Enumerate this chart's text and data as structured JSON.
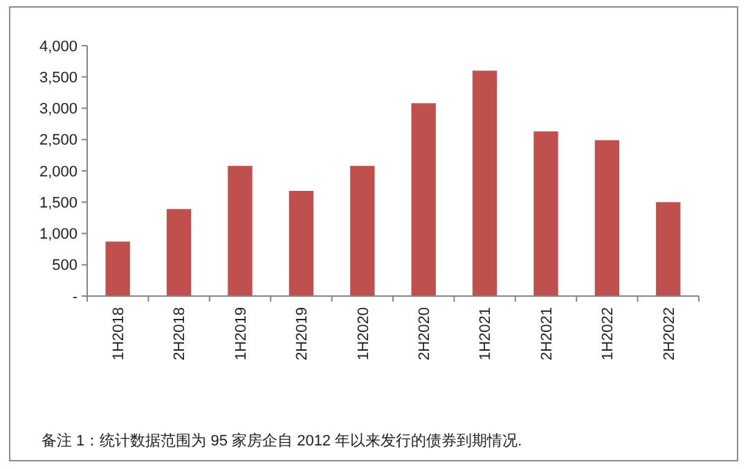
{
  "chart_data": {
    "type": "bar",
    "categories": [
      "1H2018",
      "2H2018",
      "1H2019",
      "2H2019",
      "1H2020",
      "2H2020",
      "1H2021",
      "2H2021",
      "1H2022",
      "2H2022"
    ],
    "values": [
      870,
      1390,
      2080,
      1680,
      2080,
      3080,
      3600,
      2630,
      2490,
      1500
    ],
    "color": "#c0504d",
    "ylim": [
      0,
      4000
    ],
    "yticks": [
      {
        "value": 0,
        "label": "-"
      },
      {
        "value": 500,
        "label": "500"
      },
      {
        "value": 1000,
        "label": "1,000"
      },
      {
        "value": 1500,
        "label": "1,500"
      },
      {
        "value": 2000,
        "label": "2,000"
      },
      {
        "value": 2500,
        "label": "2,500"
      },
      {
        "value": 3000,
        "label": "3,000"
      },
      {
        "value": 3500,
        "label": "3,500"
      },
      {
        "value": 4000,
        "label": "4,000"
      }
    ],
    "grid": false,
    "annotations": [
      "备注 1：统计数据范围为 95 家房企自 2012 年以来发行的债券到期情况."
    ]
  }
}
